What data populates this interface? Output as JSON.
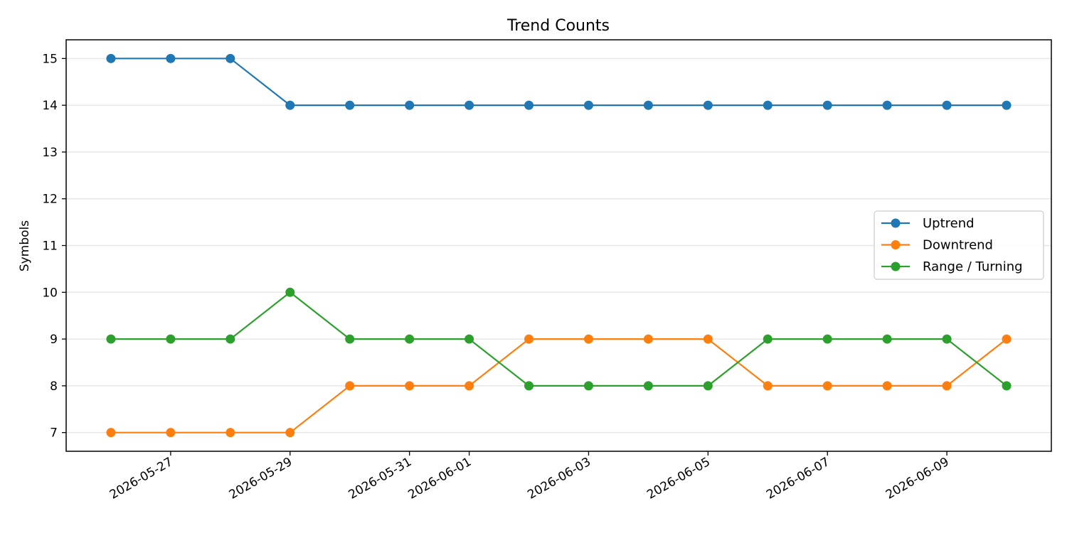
{
  "chart_data": {
    "type": "line",
    "title": "Trend Counts",
    "xlabel": "",
    "ylabel": "Symbols",
    "x": [
      "2026-05-26",
      "2026-05-27",
      "2026-05-28",
      "2026-05-29",
      "2026-05-30",
      "2026-05-31",
      "2026-06-01",
      "2026-06-02",
      "2026-06-03",
      "2026-06-04",
      "2026-06-05",
      "2026-06-06",
      "2026-06-07",
      "2026-06-08",
      "2026-06-09",
      "2026-06-10"
    ],
    "x_ticks": [
      "2026-05-27",
      "2026-05-29",
      "2026-05-31",
      "2026-06-01",
      "2026-06-03",
      "2026-06-05",
      "2026-06-07",
      "2026-06-09"
    ],
    "ylim": [
      6.6,
      15.4
    ],
    "y_ticks": [
      7,
      8,
      9,
      10,
      11,
      12,
      13,
      14,
      15
    ],
    "grid": "horizontal",
    "legend_position": "center-right",
    "series": [
      {
        "name": "Uptrend",
        "color": "#1f77b4",
        "values": [
          15,
          15,
          15,
          14,
          14,
          14,
          14,
          14,
          14,
          14,
          14,
          14,
          14,
          14,
          14,
          14
        ]
      },
      {
        "name": "Downtrend",
        "color": "#ff7f0e",
        "values": [
          7,
          7,
          7,
          7,
          8,
          8,
          8,
          9,
          9,
          9,
          9,
          8,
          8,
          8,
          8,
          9
        ]
      },
      {
        "name": "Range / Turning",
        "color": "#2ca02c",
        "values": [
          9,
          9,
          9,
          10,
          9,
          9,
          9,
          8,
          8,
          8,
          8,
          9,
          9,
          9,
          9,
          8
        ]
      }
    ]
  }
}
